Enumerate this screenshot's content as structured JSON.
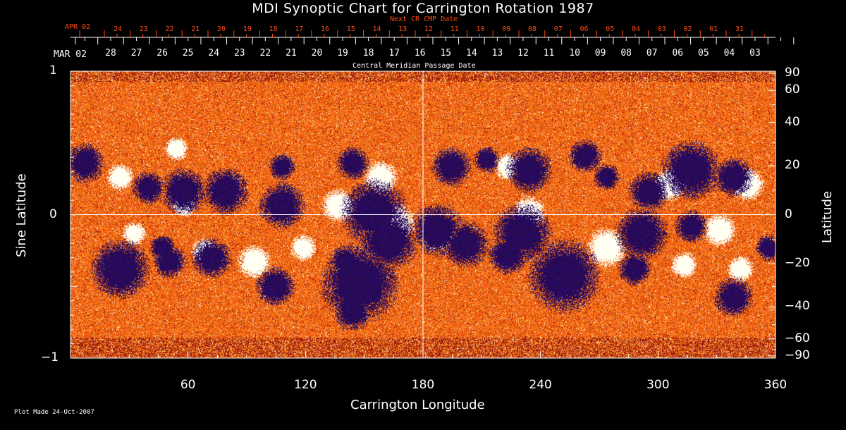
{
  "chart_data": {
    "type": "heatmap",
    "title": "MDI Synoptic Chart for Carrington Rotation 1987",
    "xlabel": "Carrington Longitude",
    "ylabel_left": "Sine Latitude",
    "ylabel_right": "Latitude",
    "xlim": [
      0,
      360
    ],
    "ylim": [
      -1,
      1
    ],
    "x_ticks": [
      "60",
      "120",
      "180",
      "240",
      "300",
      "360"
    ],
    "x_tick_values": [
      60,
      120,
      180,
      240,
      300,
      360
    ],
    "y_left_ticks": [
      "1",
      "0",
      "−1"
    ],
    "y_left_values": [
      1,
      0,
      -1
    ],
    "y_right_ticks": [
      "90",
      "60",
      "40",
      "20",
      "0",
      "−20",
      "−40",
      "−60",
      "−90"
    ],
    "y_right_values": [
      90,
      60,
      40,
      20,
      0,
      -20,
      -40,
      -60,
      -90
    ],
    "top_axis_label": "Central Meridian Passage Date",
    "top_axis_start": "MAR 02",
    "top_axis_dates": [
      "28",
      "27",
      "26",
      "25",
      "24",
      "23",
      "22",
      "21",
      "20",
      "19",
      "18",
      "17",
      "16",
      "15",
      "14",
      "13",
      "12",
      "11",
      "10",
      "09",
      "08",
      "07",
      "06",
      "05",
      "04",
      "03"
    ],
    "next_cr_label": "Next CR CMP Date",
    "next_cr_start": "APR 02",
    "next_cr_dates": [
      "24",
      "23",
      "22",
      "21",
      "20",
      "19",
      "18",
      "17",
      "16",
      "15",
      "14",
      "13",
      "12",
      "11",
      "10",
      "09",
      "08",
      "07",
      "06",
      "05",
      "04",
      "03",
      "02",
      "01",
      "31"
    ],
    "colors": {
      "background_field": "#ff5a10",
      "positive": "#ffffff",
      "negative": "#1a1060"
    }
  },
  "footer": "Plot Made 24-Oct-2007"
}
